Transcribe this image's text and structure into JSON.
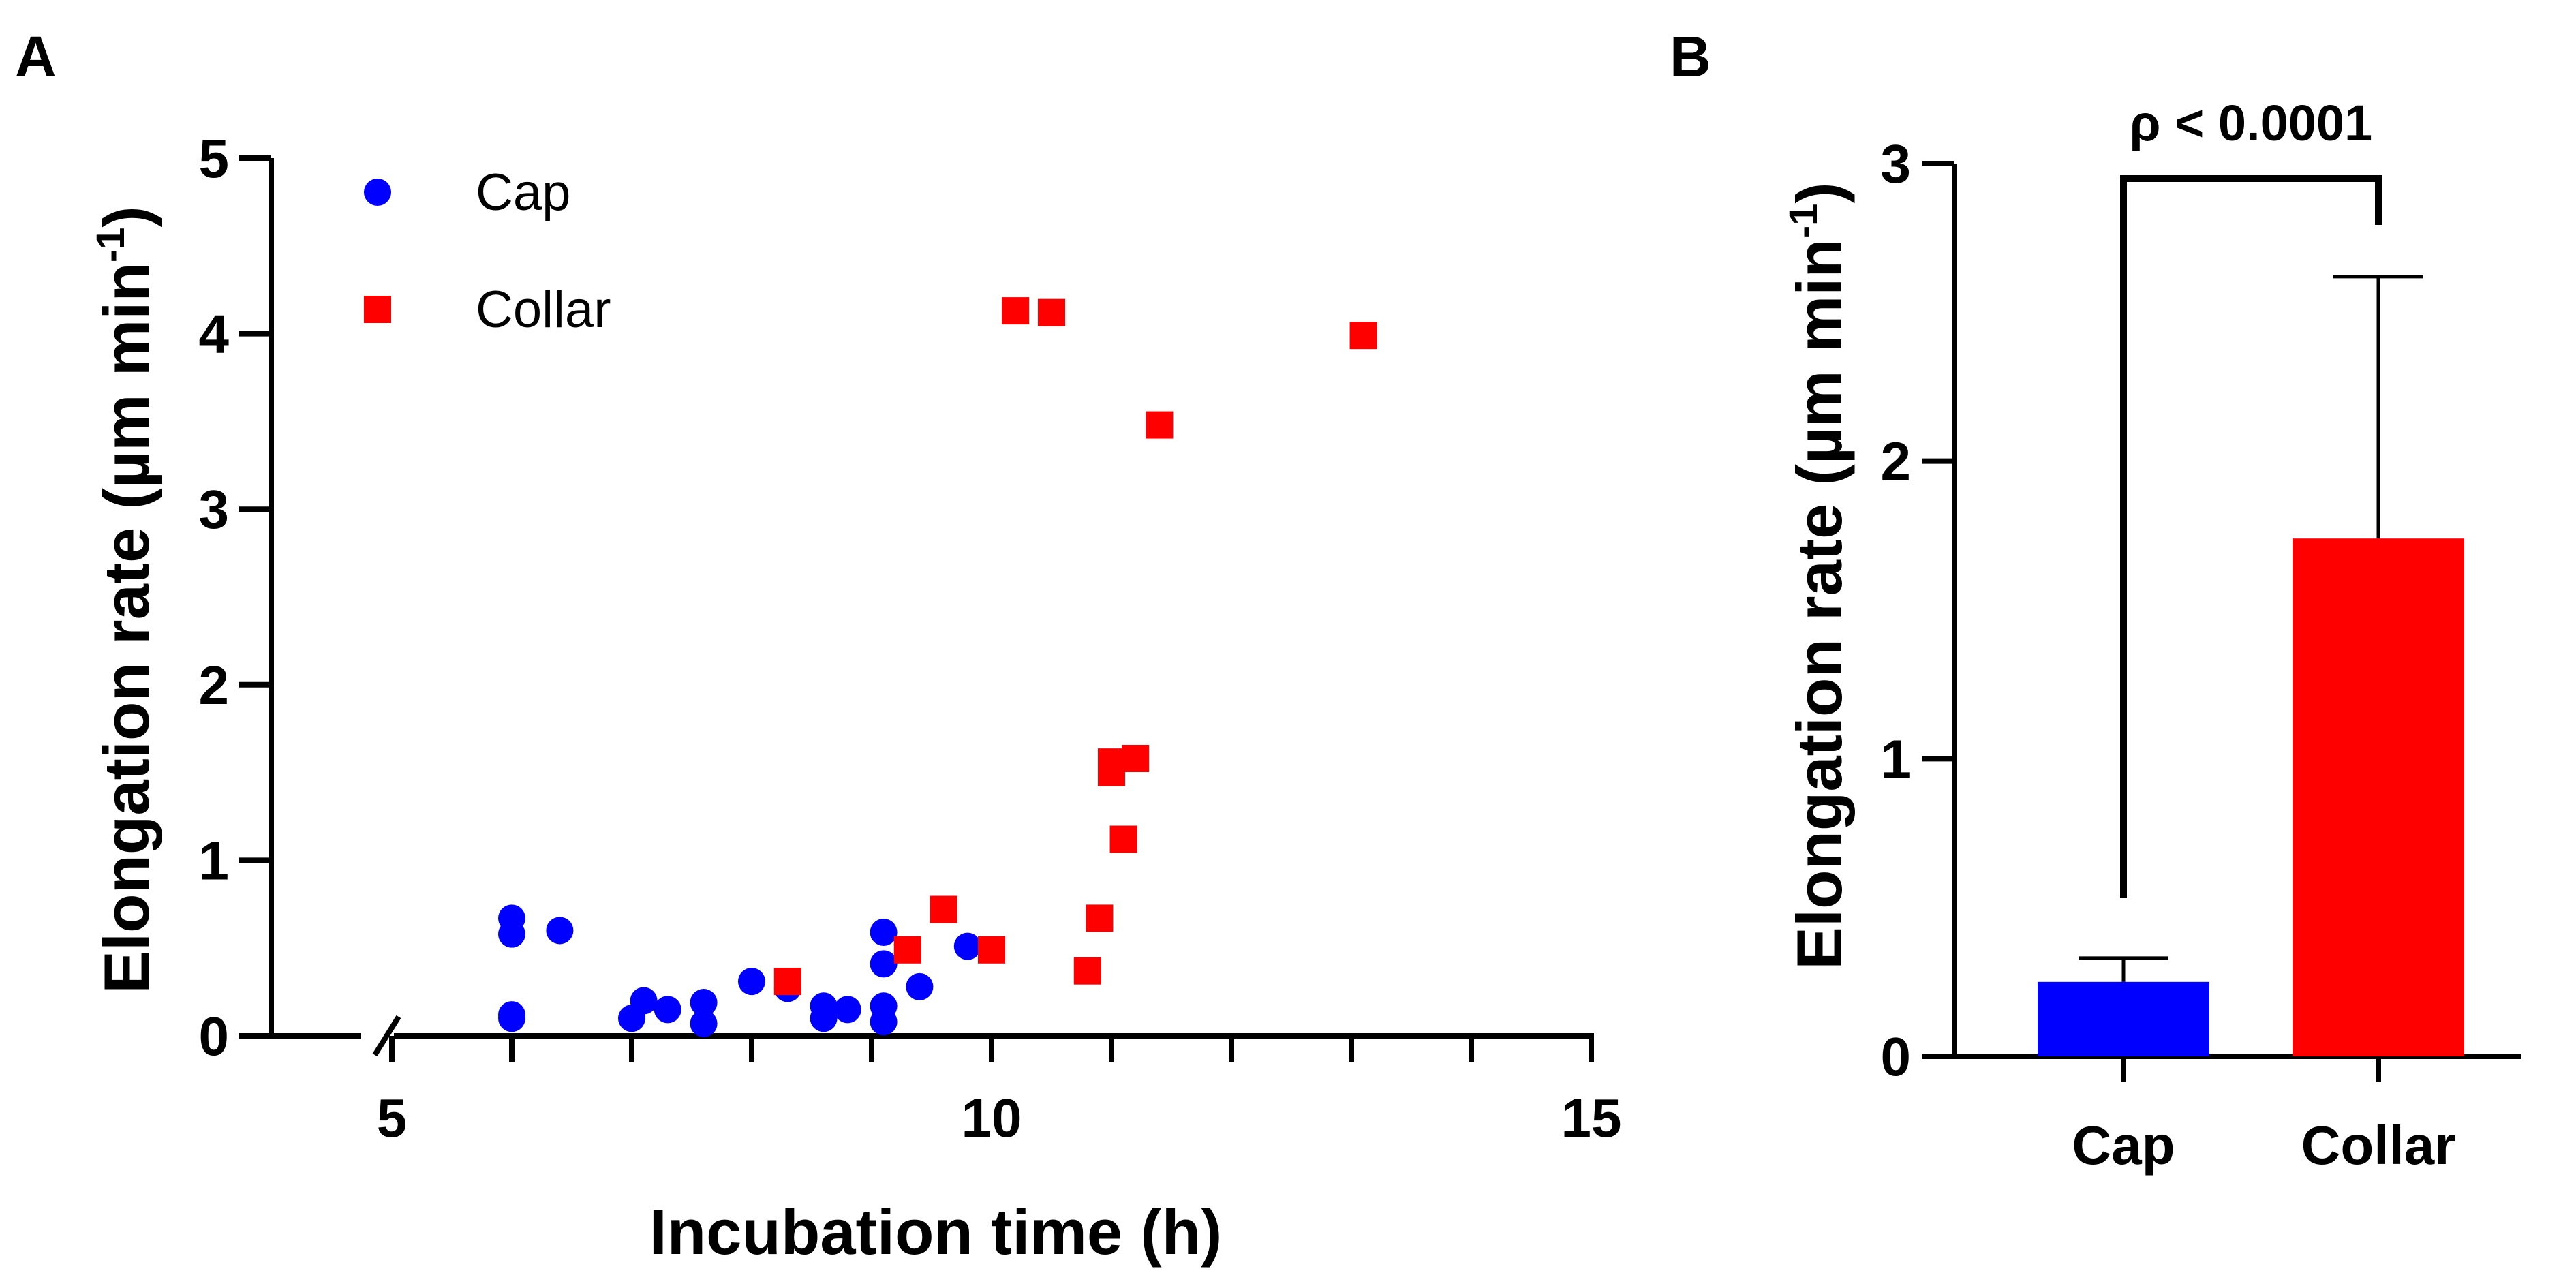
{
  "chart_data": [
    {
      "panel": "A",
      "type": "scatter",
      "title": "",
      "xlabel": "Incubation time (h)",
      "ylabel": "Elongation rate (µm min",
      "ylabel_sup": "-1",
      "ylabel_close": ")",
      "xlim": [
        5,
        15
      ],
      "ylim": [
        0,
        5
      ],
      "x_axis_break": true,
      "xticks": [
        5,
        10,
        15
      ],
      "xticks_minor": [
        6,
        7,
        8,
        9,
        11,
        12,
        13,
        14
      ],
      "yticks": [
        0,
        1,
        2,
        3,
        4,
        5
      ],
      "legend_position": "top-left",
      "series": [
        {
          "name": "Cap",
          "marker": "circle",
          "color": "#0000ff",
          "points": [
            [
              6.0,
              0.67
            ],
            [
              6.0,
              0.58
            ],
            [
              6.0,
              0.12
            ],
            [
              6.0,
              0.1
            ],
            [
              6.4,
              0.6
            ],
            [
              7.0,
              0.1
            ],
            [
              7.1,
              0.2
            ],
            [
              7.3,
              0.15
            ],
            [
              7.6,
              0.19
            ],
            [
              7.6,
              0.07
            ],
            [
              8.0,
              0.31
            ],
            [
              8.3,
              0.27
            ],
            [
              8.6,
              0.17
            ],
            [
              8.6,
              0.1
            ],
            [
              8.8,
              0.15
            ],
            [
              9.1,
              0.59
            ],
            [
              9.1,
              0.41
            ],
            [
              9.1,
              0.17
            ],
            [
              9.1,
              0.08
            ],
            [
              9.4,
              0.28
            ],
            [
              9.8,
              0.51
            ]
          ]
        },
        {
          "name": "Collar",
          "marker": "square",
          "color": "#ff0000",
          "points": [
            [
              8.3,
              0.31
            ],
            [
              9.3,
              0.49
            ],
            [
              9.6,
              0.72
            ],
            [
              10.0,
              0.49
            ],
            [
              10.2,
              4.13
            ],
            [
              10.5,
              4.12
            ],
            [
              10.8,
              0.37
            ],
            [
              10.9,
              0.67
            ],
            [
              11.0,
              1.56
            ],
            [
              11.0,
              1.5
            ],
            [
              11.1,
              1.12
            ],
            [
              11.2,
              1.58
            ],
            [
              11.4,
              3.48
            ],
            [
              13.1,
              3.99
            ]
          ]
        }
      ]
    },
    {
      "panel": "B",
      "type": "bar",
      "title": "",
      "xlabel": "",
      "ylabel": "Elongation rate (µm min",
      "ylabel_sup": "-1",
      "ylabel_close": ")",
      "ylim": [
        0,
        3
      ],
      "yticks": [
        0,
        1,
        2,
        3
      ],
      "categories": [
        "Cap",
        "Collar"
      ],
      "values": [
        0.25,
        1.74
      ],
      "errors": [
        0.08,
        0.88
      ],
      "colors": [
        "#0000ff",
        "#ff0000"
      ],
      "annotation": "ρ < 0.0001"
    }
  ]
}
